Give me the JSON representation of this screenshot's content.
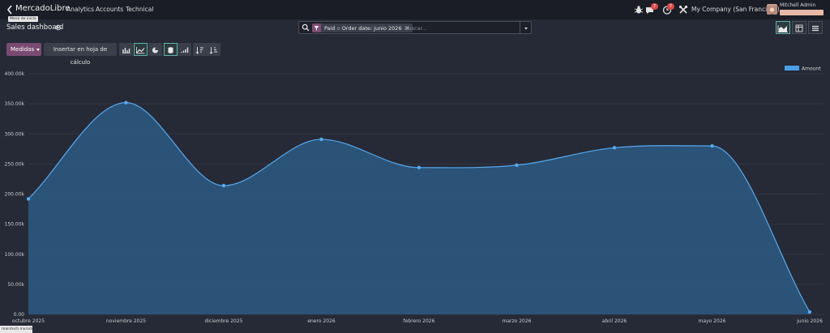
{
  "navbar": {
    "app_name": "MercadoLibre",
    "menu": [
      "Analytics",
      "Accounts",
      "Technical"
    ],
    "tooltip": "Menú de inicio",
    "messages_count": "7",
    "activity_count": "7",
    "company": "My Company (San Francisco)",
    "user_name": "Mitchell Admin"
  },
  "control": {
    "title": "Sales dashboard",
    "facet_part1": "Paid",
    "facet_sep": "o",
    "facet_part2": "Order date: junio 2026",
    "search_placeholder": "Buscar...",
    "measures_label": "Medidas",
    "insert_label": "Insertar en hoja de cálculo"
  },
  "statusbar": {
    "url": "maintech.mx/odoo"
  },
  "colors": {
    "accent": "#5cb4a9",
    "primary": "#7a4b71",
    "series": "#4a9fea"
  },
  "chart_data": {
    "type": "area",
    "categories": [
      "octubre 2025",
      "noviembre 2025",
      "diciembre 2025",
      "enero 2026",
      "febrero 2026",
      "marzo 2026",
      "abril 2026",
      "mayo 2026",
      "junio 2026"
    ],
    "series": [
      {
        "name": "Amount",
        "values": [
          192000,
          352000,
          214000,
          291000,
          244000,
          248000,
          277000,
          280000,
          4000
        ]
      }
    ],
    "yticks": [
      "0.00",
      "50.00k",
      "100.00k",
      "150.00k",
      "200.00k",
      "250.00k",
      "300.00k",
      "350.00k",
      "400.00k"
    ],
    "ylim": [
      0,
      400000
    ],
    "grid": true,
    "legend_position": "top-right"
  }
}
